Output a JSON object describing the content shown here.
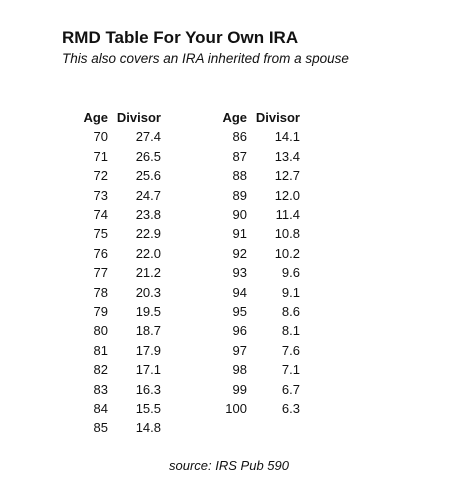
{
  "header": {
    "title": "RMD Table For Your Own IRA",
    "subtitle": "This also covers an IRA inherited from a spouse"
  },
  "tables": [
    {
      "columns": [
        "Age",
        "Divisor"
      ],
      "rows": [
        [
          "70",
          "27.4"
        ],
        [
          "71",
          "26.5"
        ],
        [
          "72",
          "25.6"
        ],
        [
          "73",
          "24.7"
        ],
        [
          "74",
          "23.8"
        ],
        [
          "75",
          "22.9"
        ],
        [
          "76",
          "22.0"
        ],
        [
          "77",
          "21.2"
        ],
        [
          "78",
          "20.3"
        ],
        [
          "79",
          "19.5"
        ],
        [
          "80",
          "18.7"
        ],
        [
          "81",
          "17.9"
        ],
        [
          "82",
          "17.1"
        ],
        [
          "83",
          "16.3"
        ],
        [
          "84",
          "15.5"
        ],
        [
          "85",
          "14.8"
        ]
      ]
    },
    {
      "columns": [
        "Age",
        "Divisor"
      ],
      "rows": [
        [
          "86",
          "14.1"
        ],
        [
          "87",
          "13.4"
        ],
        [
          "88",
          "12.7"
        ],
        [
          "89",
          "12.0"
        ],
        [
          "90",
          "11.4"
        ],
        [
          "91",
          "10.8"
        ],
        [
          "92",
          "10.2"
        ],
        [
          "93",
          "9.6"
        ],
        [
          "94",
          "9.1"
        ],
        [
          "95",
          "8.6"
        ],
        [
          "96",
          "8.1"
        ],
        [
          "97",
          "7.6"
        ],
        [
          "98",
          "7.1"
        ],
        [
          "99",
          "6.7"
        ],
        [
          "100",
          "6.3"
        ]
      ]
    }
  ],
  "footer": {
    "source": "source: IRS Pub 590"
  }
}
